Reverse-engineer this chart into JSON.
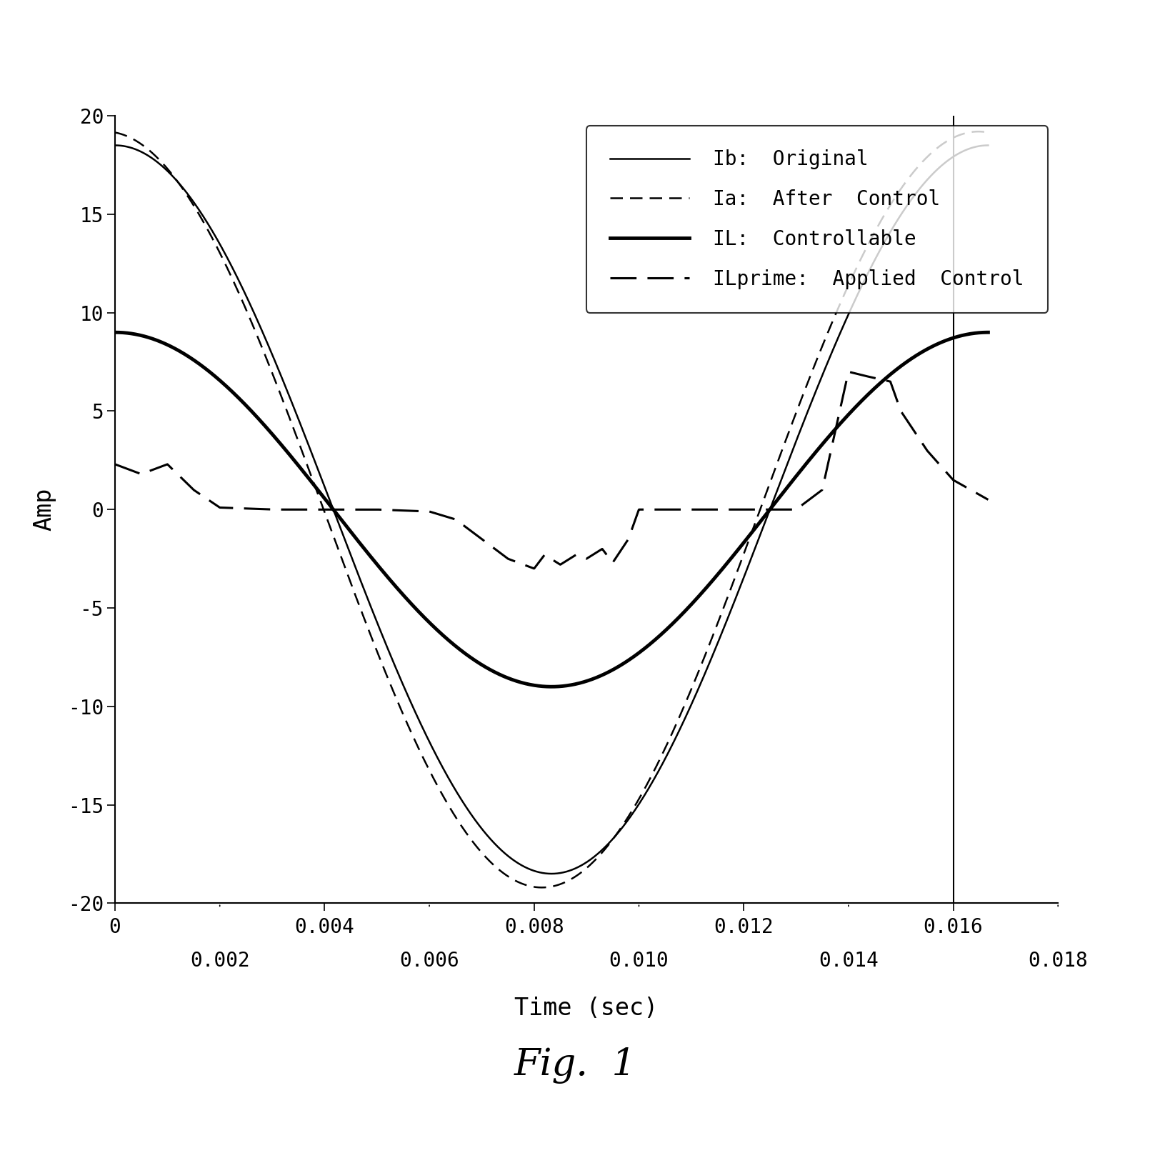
{
  "title": "",
  "xlabel": "Time (sec)",
  "ylabel": "Amp",
  "xlim": [
    0,
    0.018
  ],
  "ylim": [
    -20,
    20
  ],
  "xticks_major": [
    0,
    0.004,
    0.008,
    0.012,
    0.016
  ],
  "xticks_minor_labels": [
    0.002,
    0.006,
    0.01,
    0.014,
    0.018
  ],
  "yticks": [
    -20,
    -15,
    -10,
    -5,
    0,
    5,
    10,
    15,
    20
  ],
  "fig_caption": "Fig.  1",
  "legend_entries": [
    {
      "label": "Ib:  Original",
      "linestyle": "solid",
      "linewidth": 1.8
    },
    {
      "label": "Ia:  After  Control",
      "linestyle": "dashed",
      "linewidth": 1.8
    },
    {
      "label": "IL:  Controllable",
      "linestyle": "solid",
      "linewidth": 3.5
    },
    {
      "label": "ILprime:  Applied  Control",
      "linestyle": "dashed",
      "linewidth": 2.2
    }
  ],
  "background_color": "#ffffff",
  "line_color": "#000000",
  "fontsize_ticks": 20,
  "fontsize_labels": 24,
  "fontsize_legend": 20,
  "fontsize_caption": 38
}
